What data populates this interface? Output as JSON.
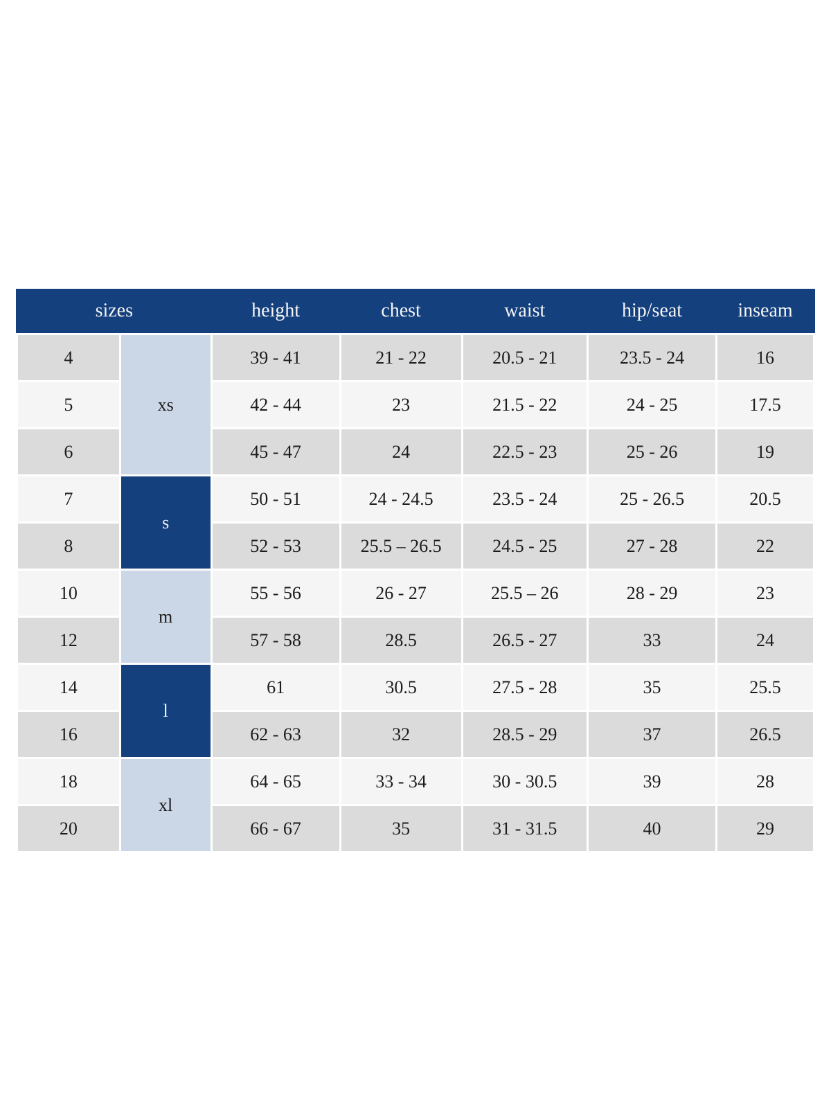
{
  "colors": {
    "page_bg": "#ffffff",
    "navy": "#14407e",
    "group_light": "#cbd7e6",
    "stripe_gray": "#dbdbdb",
    "stripe_light": "#f5f5f5",
    "text_dark": "#1c1c1c",
    "header_text": "#f5f5f5"
  },
  "table": {
    "header": {
      "sizes": "sizes",
      "columns": [
        "height",
        "chest",
        "waist",
        "hip/seat",
        "inseam"
      ]
    },
    "rows": [
      {
        "size": "4",
        "stripe": "gray",
        "group": {
          "label": "xs",
          "span": 3,
          "tone": "light"
        },
        "height": "39 - 41",
        "chest": "21 - 22",
        "waist": "20.5 - 21",
        "hip_seat": "23.5 - 24",
        "inseam": "16"
      },
      {
        "size": "5",
        "stripe": "light",
        "height": "42 - 44",
        "chest": "23",
        "waist": "21.5 - 22",
        "hip_seat": "24 - 25",
        "inseam": "17.5"
      },
      {
        "size": "6",
        "stripe": "gray",
        "height": "45 - 47",
        "chest": "24",
        "waist": "22.5 - 23",
        "hip_seat": "25 - 26",
        "inseam": "19"
      },
      {
        "size": "7",
        "stripe": "light",
        "group": {
          "label": "s",
          "span": 2,
          "tone": "dark"
        },
        "height": "50 - 51",
        "chest": "24 - 24.5",
        "waist": "23.5 - 24",
        "hip_seat": "25 - 26.5",
        "inseam": "20.5"
      },
      {
        "size": "8",
        "stripe": "gray",
        "height": "52 - 53",
        "chest": "25.5 – 26.5",
        "waist": "24.5 - 25",
        "hip_seat": "27 - 28",
        "inseam": "22"
      },
      {
        "size": "10",
        "stripe": "light",
        "group": {
          "label": "m",
          "span": 2,
          "tone": "light"
        },
        "height": "55 - 56",
        "chest": "26 - 27",
        "waist": "25.5 – 26",
        "hip_seat": "28 - 29",
        "inseam": "23"
      },
      {
        "size": "12",
        "stripe": "gray",
        "height": "57 - 58",
        "chest": "28.5",
        "waist": "26.5 - 27",
        "hip_seat": "33",
        "inseam": "24"
      },
      {
        "size": "14",
        "stripe": "light",
        "group": {
          "label": "l",
          "span": 2,
          "tone": "dark"
        },
        "height": "61",
        "chest": "30.5",
        "waist": "27.5 - 28",
        "hip_seat": "35",
        "inseam": "25.5"
      },
      {
        "size": "16",
        "stripe": "gray",
        "height": "62 - 63",
        "chest": "32",
        "waist": "28.5 - 29",
        "hip_seat": "37",
        "inseam": "26.5"
      },
      {
        "size": "18",
        "stripe": "light",
        "group": {
          "label": "xl",
          "span": 2,
          "tone": "light"
        },
        "height": "64 - 65",
        "chest": "33 - 34",
        "waist": "30 - 30.5",
        "hip_seat": "39",
        "inseam": "28"
      },
      {
        "size": "20",
        "stripe": "gray",
        "height": "66 - 67",
        "chest": "35",
        "waist": "31 - 31.5",
        "hip_seat": "40",
        "inseam": "29"
      }
    ]
  }
}
